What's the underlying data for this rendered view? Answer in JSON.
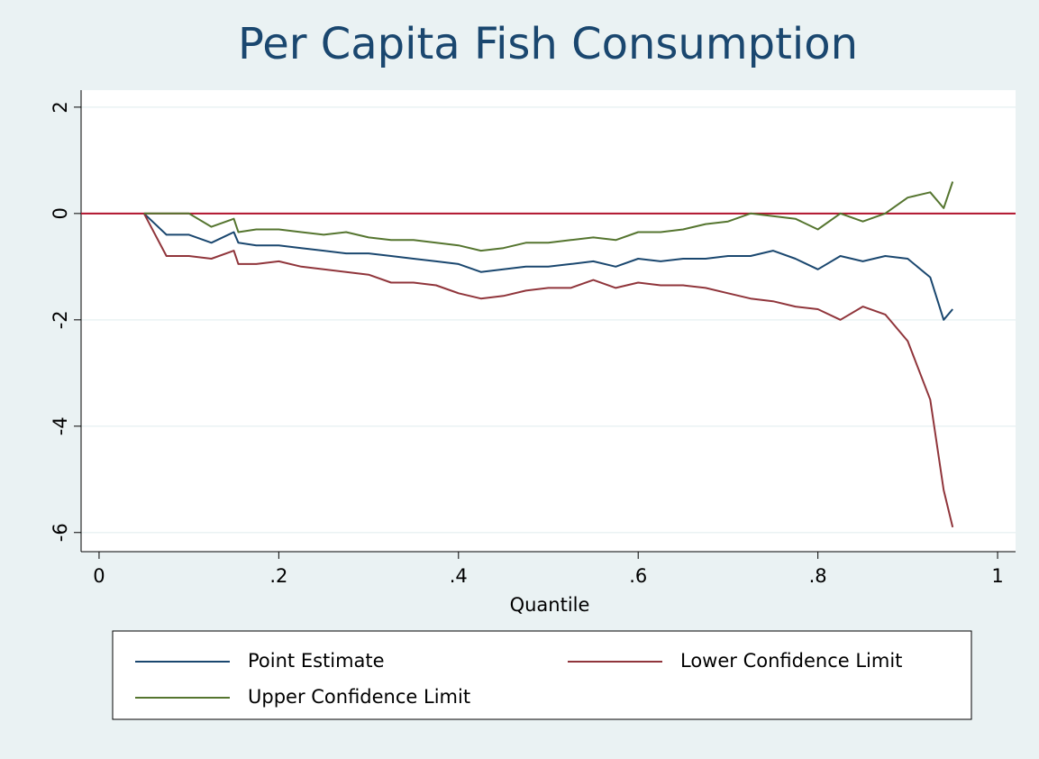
{
  "chart_data": {
    "type": "line",
    "title": "Per Capita Fish Consumption",
    "x_label": "Quantile",
    "x": [
      0.05,
      0.075,
      0.1,
      0.125,
      0.15,
      0.155,
      0.175,
      0.2,
      0.225,
      0.25,
      0.275,
      0.3,
      0.325,
      0.35,
      0.375,
      0.4,
      0.425,
      0.45,
      0.475,
      0.5,
      0.525,
      0.55,
      0.575,
      0.6,
      0.625,
      0.65,
      0.675,
      0.7,
      0.725,
      0.75,
      0.775,
      0.8,
      0.825,
      0.85,
      0.875,
      0.9,
      0.925,
      0.94,
      0.95
    ],
    "series": [
      {
        "name": "Point Estimate",
        "color": "#1a476f",
        "values": [
          0,
          -0.4,
          -0.4,
          -0.55,
          -0.35,
          -0.55,
          -0.6,
          -0.6,
          -0.65,
          -0.7,
          -0.75,
          -0.75,
          -0.8,
          -0.85,
          -0.9,
          -0.95,
          -1.1,
          -1.05,
          -1.0,
          -1.0,
          -0.95,
          -0.9,
          -1.0,
          -0.85,
          -0.9,
          -0.85,
          -0.85,
          -0.8,
          -0.8,
          -0.7,
          -0.85,
          -1.05,
          -0.8,
          -0.9,
          -0.8,
          -0.85,
          -1.2,
          -2.0,
          -1.8
        ]
      },
      {
        "name": "Lower Confidence Limit",
        "color": "#90353b",
        "values": [
          0,
          -0.8,
          -0.8,
          -0.85,
          -0.7,
          -0.95,
          -0.95,
          -0.9,
          -1.0,
          -1.05,
          -1.1,
          -1.15,
          -1.3,
          -1.3,
          -1.35,
          -1.5,
          -1.6,
          -1.55,
          -1.45,
          -1.4,
          -1.4,
          -1.25,
          -1.4,
          -1.3,
          -1.35,
          -1.35,
          -1.4,
          -1.5,
          -1.6,
          -1.65,
          -1.75,
          -1.8,
          -2.0,
          -1.75,
          -1.9,
          -2.4,
          -3.5,
          -5.2,
          -5.9
        ]
      },
      {
        "name": "Upper Confidence Limit",
        "color": "#55752f",
        "values": [
          0,
          0,
          0,
          -0.25,
          -0.1,
          -0.35,
          -0.3,
          -0.3,
          -0.35,
          -0.4,
          -0.35,
          -0.45,
          -0.5,
          -0.5,
          -0.55,
          -0.6,
          -0.7,
          -0.65,
          -0.55,
          -0.55,
          -0.5,
          -0.45,
          -0.5,
          -0.35,
          -0.35,
          -0.3,
          -0.2,
          -0.15,
          0,
          -0.05,
          -0.1,
          -0.3,
          0,
          -0.15,
          0,
          0.3,
          0.4,
          0.1,
          0.6
        ]
      }
    ],
    "reference_line": {
      "value": 0,
      "color": "#b0122c"
    },
    "xlim": [
      -0.02,
      1.02
    ],
    "xticks": [
      0,
      {
        "value": 0.2,
        "label": ".2"
      },
      {
        "value": 0.4,
        "label": ".4"
      },
      {
        "value": 0.6,
        "label": ".6"
      },
      {
        "value": 0.8,
        "label": ".8"
      },
      1
    ],
    "ylim": [
      -6.36,
      2.32
    ],
    "yticks": [
      2,
      0,
      -2,
      -4,
      -6
    ],
    "grid": true
  }
}
